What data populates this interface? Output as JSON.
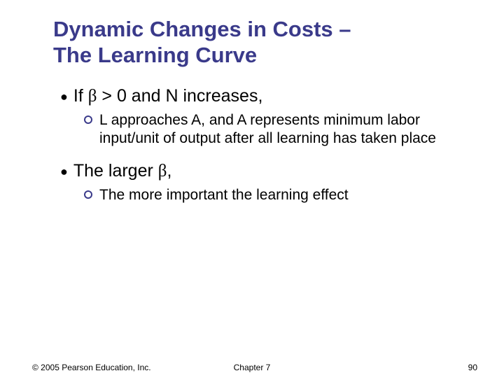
{
  "title_line1": "Dynamic Changes in Costs –",
  "title_line2": "The Learning Curve",
  "bullets": [
    {
      "lead": "If ",
      "after_beta": " > 0 and N increases,",
      "sub": "L approaches A, and A represents minimum labor input/unit of output after all learning has taken place"
    },
    {
      "lead": "The larger ",
      "after_beta": ",",
      "sub": " The more important the learning effect"
    }
  ],
  "beta_char": "β",
  "footer": {
    "copyright": "© 2005 Pearson Education, Inc.",
    "chapter": "Chapter 7",
    "page": "90"
  },
  "colors": {
    "title": "#3a3a8a",
    "bullet_ring": "#3a3a8a",
    "text": "#000000",
    "background": "#ffffff"
  }
}
